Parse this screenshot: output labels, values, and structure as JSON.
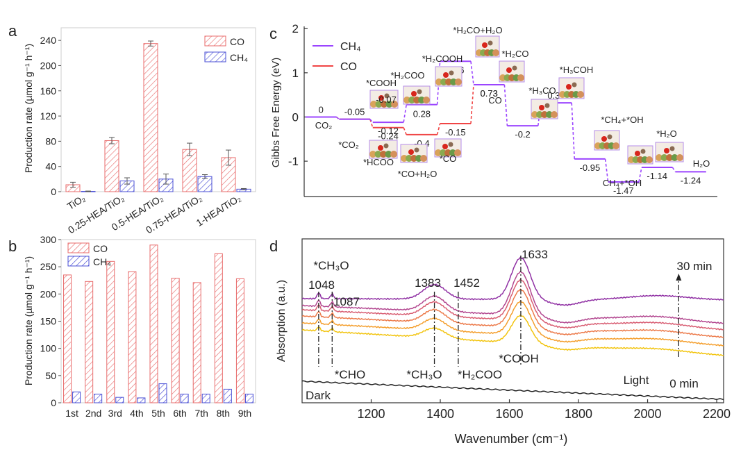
{
  "colors": {
    "co": "#e86b6b",
    "ch4": "#4a4fd6",
    "path_purple": "#9b45ff",
    "path_red": "#f04545",
    "frame": "#cccccc"
  },
  "chart_data": [
    {
      "id": "a",
      "panel_label": "a",
      "type": "bar",
      "ylabel": "Production rate (µmol g⁻¹ h⁻¹)",
      "ylim": [
        0,
        260
      ],
      "yticks": [
        0,
        40,
        80,
        120,
        160,
        200,
        240
      ],
      "categories": [
        "TiO₂",
        "0.25-HEA/TiO₂",
        "0.5-HEA/TiO₂",
        "0.75-HEA/TiO₂",
        "1-HEA/TiO₂"
      ],
      "series": [
        {
          "name": "CO",
          "values": [
            11,
            81,
            235,
            67,
            54
          ],
          "errors": [
            4,
            5,
            4,
            10,
            12
          ]
        },
        {
          "name": "CH₄",
          "values": [
            0.5,
            17,
            20,
            24,
            4
          ],
          "errors": [
            0.5,
            5,
            8,
            3,
            1
          ]
        }
      ],
      "legend": "top-right"
    },
    {
      "id": "b",
      "panel_label": "b",
      "type": "bar",
      "ylabel": "Production rate (µmol g⁻¹ h⁻¹)",
      "ylim": [
        0,
        300
      ],
      "yticks": [
        0,
        50,
        100,
        150,
        200,
        250,
        300
      ],
      "categories": [
        "1st",
        "2nd",
        "3rd",
        "4th",
        "5th",
        "6th",
        "7th",
        "8th",
        "9th"
      ],
      "series": [
        {
          "name": "CO",
          "values": [
            235,
            223,
            260,
            241,
            290,
            229,
            221,
            274,
            228
          ]
        },
        {
          "name": "CH₄",
          "values": [
            20,
            16,
            10,
            9,
            35,
            16,
            16,
            25,
            16
          ]
        }
      ],
      "legend": "top-left"
    },
    {
      "id": "c",
      "panel_label": "c",
      "type": "line",
      "ylabel": "Gibbs Free Energy (eV)",
      "ylim": [
        -1.8,
        2.05
      ],
      "yticks": [
        -1,
        0,
        1,
        2
      ],
      "series": [
        {
          "name": "CH₄",
          "steps": [
            {
              "value": 0,
              "label": "0"
            },
            {
              "value": -0.05,
              "label": "-0.05"
            },
            {
              "value": -0.12,
              "label": "-0.12"
            },
            {
              "value": 0.28,
              "label": "0.28"
            },
            {
              "value": 1.26,
              "label": "1.26"
            },
            {
              "value": 0.73,
              "label": "0.73"
            },
            {
              "value": -0.2,
              "label": "-0.2"
            },
            {
              "value": 0.32,
              "label": "0.32"
            },
            {
              "value": -0.95,
              "label": "-0.95"
            },
            {
              "value": -1.47,
              "label": "-1.47"
            },
            {
              "value": -1.14,
              "label": "-1.14"
            },
            {
              "value": -1.24,
              "label": "-1.24"
            }
          ]
        },
        {
          "name": "CO",
          "steps": [
            {
              "value": 0,
              "label": ""
            },
            {
              "value": -0.05,
              "label": ""
            },
            {
              "value": -0.24,
              "label": "-0.24"
            },
            {
              "value": -0.4,
              "label": "-0.4"
            },
            {
              "value": -0.15,
              "label": "-0.15"
            },
            {
              "value": 0.73,
              "label": "0.73"
            }
          ]
        }
      ],
      "species_labels": [
        "CO₂",
        "*CO₂",
        "*COOH",
        "-0.07",
        "*HCOO",
        "*H₂COO",
        "*CO+H₂O",
        "*H₂COOH",
        "*CO",
        "*H₂CO+H₂O",
        "CO",
        "*H₂CO",
        "*H₃CO",
        "*H₃COH",
        "*CH₄+*OH",
        "*H₂O",
        "CH₄+*OH",
        "H₂O"
      ],
      "legend": "top-left"
    },
    {
      "id": "d",
      "panel_label": "d",
      "type": "line",
      "xlabel": "Wavenumber (cm⁻¹)",
      "ylabel": "Absorption (a.u.)",
      "xlim": [
        1000,
        2220
      ],
      "xticks": [
        1200,
        1400,
        1600,
        1800,
        2000,
        2200
      ],
      "peaks": [
        "1048",
        "1087",
        "1383",
        "1452",
        "1633"
      ],
      "species_labels": [
        "*CH₃O",
        "*CHO",
        "*CH₃O",
        "*H₂COO",
        "*COOH"
      ],
      "annotations": [
        "30 min",
        "0 min",
        "Light",
        "Dark"
      ],
      "series_colors": [
        "#f2c40f",
        "#f49e2c",
        "#ec7a4a",
        "#d85d72",
        "#b2468f",
        "#8f2fa3"
      ]
    }
  ]
}
